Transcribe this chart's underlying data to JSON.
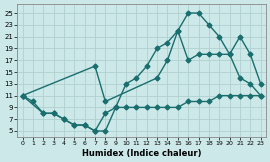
{
  "title": "",
  "xlabel": "Humidex (Indice chaleur)",
  "bg_color": "#cce8e8",
  "grid_color": "#b0d0d0",
  "line_color": "#1a6e6e",
  "xlim": [
    -0.5,
    23.5
  ],
  "ylim": [
    4,
    26.5
  ],
  "xticks": [
    0,
    1,
    2,
    3,
    4,
    5,
    6,
    7,
    8,
    9,
    10,
    11,
    12,
    13,
    14,
    15,
    16,
    17,
    18,
    19,
    20,
    21,
    22,
    23
  ],
  "yticks": [
    5,
    7,
    9,
    11,
    13,
    15,
    17,
    19,
    21,
    23,
    25
  ],
  "line1_x": [
    0,
    1,
    2,
    3,
    4,
    5,
    6,
    7,
    8,
    9,
    10,
    11,
    12,
    13,
    14,
    15,
    16,
    17,
    18,
    19,
    20,
    21,
    22,
    23
  ],
  "line1_y": [
    11,
    10,
    8,
    8,
    7,
    6,
    6,
    5,
    5,
    9,
    13,
    14,
    16,
    19,
    20,
    22,
    25,
    25,
    23,
    21,
    18,
    14,
    13,
    11
  ],
  "line2_x": [
    0,
    2,
    3,
    4,
    5,
    6,
    7,
    8,
    9,
    10,
    11,
    12,
    13,
    14,
    15,
    16,
    17,
    18,
    19,
    20,
    21,
    22,
    23
  ],
  "line2_y": [
    11,
    8,
    8,
    7,
    6,
    6,
    5,
    8,
    9,
    9,
    9,
    9,
    9,
    9,
    9,
    10,
    10,
    10,
    11,
    11,
    11,
    11,
    11
  ],
  "line3_x": [
    0,
    7,
    8,
    13,
    14,
    15,
    16,
    17,
    18,
    19,
    20,
    21,
    22,
    23
  ],
  "line3_y": [
    11,
    16,
    10,
    14,
    17,
    22,
    17,
    18,
    18,
    18,
    18,
    21,
    18,
    13
  ],
  "marker": "D",
  "markersize": 2.5,
  "linewidth": 1.0
}
